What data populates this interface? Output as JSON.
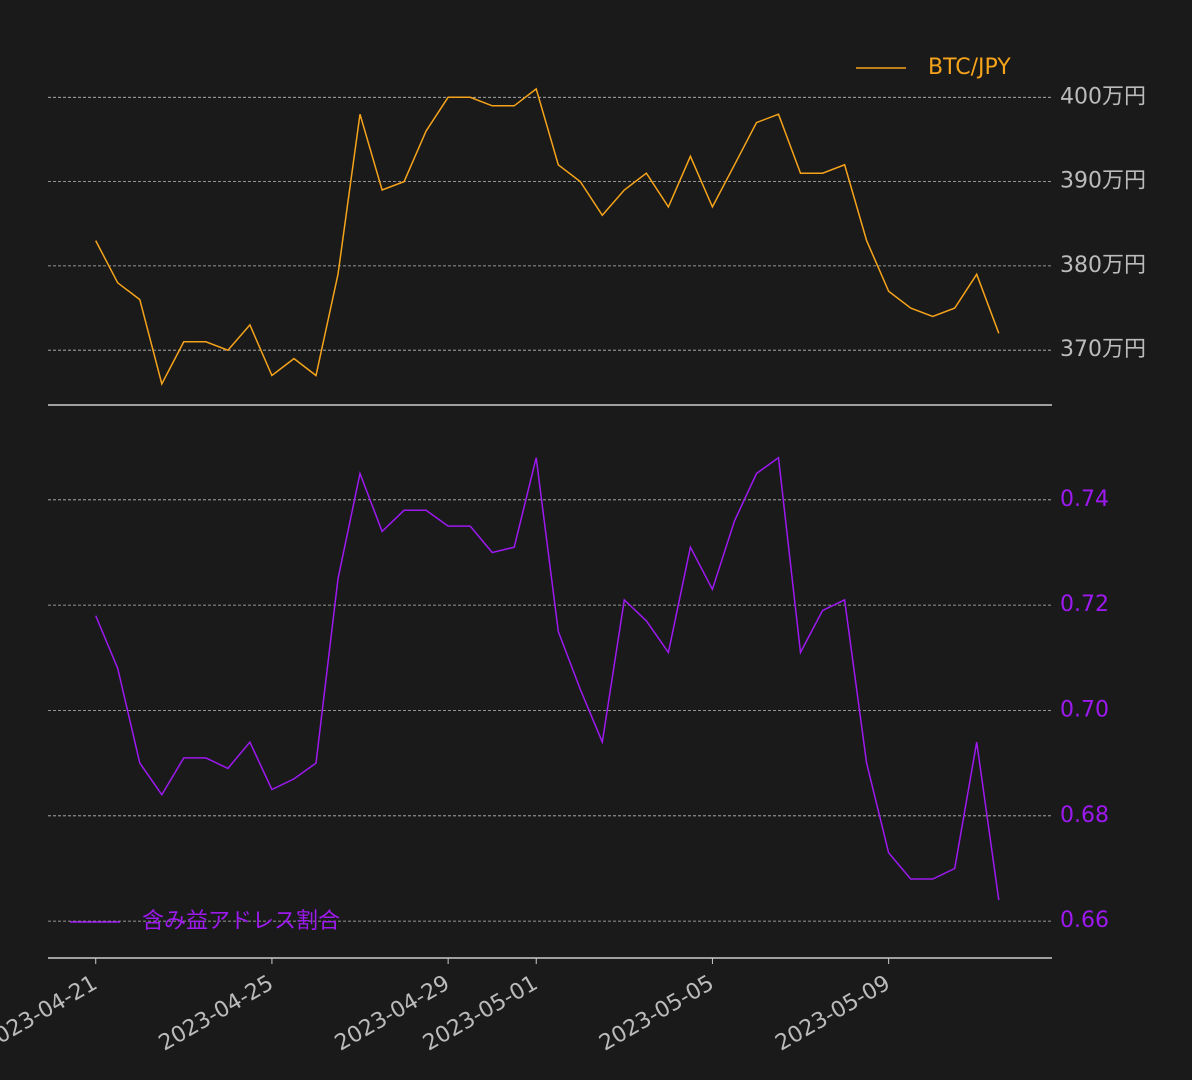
{
  "chart_data": [
    {
      "type": "line",
      "legend": "upper right",
      "grid": true,
      "x": [
        "2023-04-21T00:00",
        "2023-04-21T12:00",
        "2023-04-22T00:00",
        "2023-04-22T12:00",
        "2023-04-23T00:00",
        "2023-04-23T12:00",
        "2023-04-24T00:00",
        "2023-04-24T12:00",
        "2023-04-25T00:00",
        "2023-04-25T12:00",
        "2023-04-26T00:00",
        "2023-04-26T12:00",
        "2023-04-27T00:00",
        "2023-04-27T12:00",
        "2023-04-28T00:00",
        "2023-04-28T12:00",
        "2023-04-29T00:00",
        "2023-04-29T12:00",
        "2023-04-30T00:00",
        "2023-04-30T12:00",
        "2023-05-01T00:00",
        "2023-05-01T12:00",
        "2023-05-02T00:00",
        "2023-05-02T12:00",
        "2023-05-03T00:00",
        "2023-05-03T12:00",
        "2023-05-04T00:00",
        "2023-05-04T12:00",
        "2023-05-05T00:00",
        "2023-05-05T12:00",
        "2023-05-06T00:00",
        "2023-05-06T12:00",
        "2023-05-07T00:00",
        "2023-05-07T12:00",
        "2023-05-08T00:00",
        "2023-05-08T12:00",
        "2023-05-09T00:00",
        "2023-05-09T12:00",
        "2023-05-10T00:00",
        "2023-05-10T12:00",
        "2023-05-11T00:00",
        "2023-05-11T12:00"
      ],
      "series": [
        {
          "name": "BTC/JPY",
          "color": "#f5a31a",
          "values": [
            383,
            378,
            376,
            366,
            371,
            371,
            370,
            373,
            367,
            369,
            367,
            379,
            398,
            389,
            390,
            396,
            400,
            400,
            399,
            399,
            401,
            392,
            390,
            386,
            389,
            391,
            387,
            393,
            387,
            392,
            397,
            398,
            391,
            391,
            392,
            383,
            377,
            375,
            374,
            375,
            379,
            372
          ]
        }
      ],
      "xlim": [
        "2023-04-19T22:00",
        "2023-05-12T17:00"
      ],
      "ylim": [
        363.5,
        406.8
      ],
      "yticks": [
        {
          "value": 370,
          "label": "370万円"
        },
        {
          "value": 380,
          "label": "380万円"
        },
        {
          "value": 390,
          "label": "390万円"
        },
        {
          "value": 400,
          "label": "400万円"
        }
      ]
    },
    {
      "type": "line",
      "legend": "lower left",
      "grid": true,
      "x": [
        "2023-04-21T00:00",
        "2023-04-21T12:00",
        "2023-04-22T00:00",
        "2023-04-22T12:00",
        "2023-04-23T00:00",
        "2023-04-23T12:00",
        "2023-04-24T00:00",
        "2023-04-24T12:00",
        "2023-04-25T00:00",
        "2023-04-25T12:00",
        "2023-04-26T00:00",
        "2023-04-26T12:00",
        "2023-04-27T00:00",
        "2023-04-27T12:00",
        "2023-04-28T00:00",
        "2023-04-28T12:00",
        "2023-04-29T00:00",
        "2023-04-29T12:00",
        "2023-04-30T00:00",
        "2023-04-30T12:00",
        "2023-05-01T00:00",
        "2023-05-01T12:00",
        "2023-05-02T00:00",
        "2023-05-02T12:00",
        "2023-05-03T00:00",
        "2023-05-03T12:00",
        "2023-05-04T00:00",
        "2023-05-04T12:00",
        "2023-05-05T00:00",
        "2023-05-05T12:00",
        "2023-05-06T00:00",
        "2023-05-06T12:00",
        "2023-05-07T00:00",
        "2023-05-07T12:00",
        "2023-05-08T00:00",
        "2023-05-08T12:00",
        "2023-05-09T00:00",
        "2023-05-09T12:00",
        "2023-05-10T00:00",
        "2023-05-10T12:00",
        "2023-05-11T00:00",
        "2023-05-11T12:00"
      ],
      "series": [
        {
          "name": "含み益アドレス割合",
          "color": "#9d19f0",
          "values": [
            0.718,
            0.708,
            0.69,
            0.684,
            0.691,
            0.691,
            0.689,
            0.694,
            0.685,
            0.687,
            0.69,
            0.725,
            0.745,
            0.734,
            0.738,
            0.738,
            0.735,
            0.735,
            0.73,
            0.731,
            0.748,
            0.715,
            0.704,
            0.694,
            0.721,
            0.717,
            0.711,
            0.731,
            0.723,
            0.736,
            0.745,
            0.748,
            0.711,
            0.719,
            0.721,
            0.69,
            0.673,
            0.668,
            0.668,
            0.67,
            0.694,
            0.664
          ]
        }
      ],
      "xlim": [
        "2023-04-19T22:00",
        "2023-05-12T17:00"
      ],
      "ylim": [
        0.653,
        0.758
      ],
      "yticks": [
        {
          "value": 0.66,
          "label": "0.66"
        },
        {
          "value": 0.68,
          "label": "0.68"
        },
        {
          "value": 0.7,
          "label": "0.70"
        },
        {
          "value": 0.72,
          "label": "0.72"
        },
        {
          "value": 0.74,
          "label": "0.74"
        }
      ],
      "xticks": [
        "2023-04-21",
        "2023-04-25",
        "2023-04-29",
        "2023-05-01",
        "2023-05-05",
        "2023-05-09"
      ]
    }
  ]
}
